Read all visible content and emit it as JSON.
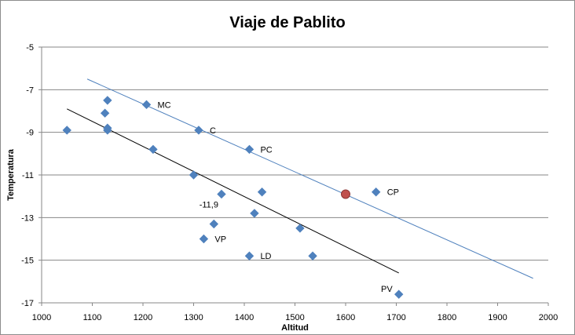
{
  "chart_data": {
    "type": "scatter",
    "title": "Viaje de Pablito",
    "xlabel": "Altitud",
    "ylabel": "Temperatura",
    "xlim": [
      1000,
      2000
    ],
    "ylim": [
      -17,
      -5
    ],
    "xticks": [
      1000,
      1100,
      1200,
      1300,
      1400,
      1500,
      1600,
      1700,
      1800,
      1900,
      2000
    ],
    "yticks": [
      -5,
      -7,
      -9,
      -11,
      -13,
      -15,
      -17
    ],
    "grid": "horizontal",
    "legend": "none",
    "points": [
      {
        "x": 1050,
        "y": -8.9
      },
      {
        "x": 1125,
        "y": -8.1
      },
      {
        "x": 1130,
        "y": -7.5
      },
      {
        "x": 1130,
        "y": -8.8
      },
      {
        "x": 1130,
        "y": -8.9
      },
      {
        "x": 1207,
        "y": -7.7,
        "label": "MC"
      },
      {
        "x": 1220,
        "y": -9.8
      },
      {
        "x": 1300,
        "y": -11.0
      },
      {
        "x": 1310,
        "y": -8.9,
        "label": "C"
      },
      {
        "x": 1320,
        "y": -14.0,
        "label": "VP"
      },
      {
        "x": 1340,
        "y": -13.3
      },
      {
        "x": 1355,
        "y": -11.9
      },
      {
        "x": 1410,
        "y": -9.8,
        "label": "PC"
      },
      {
        "x": 1410,
        "y": -14.8,
        "label": "LD"
      },
      {
        "x": 1420,
        "y": -12.8
      },
      {
        "x": 1435,
        "y": -11.8
      },
      {
        "x": 1510,
        "y": -13.5
      },
      {
        "x": 1535,
        "y": -14.8
      },
      {
        "x": 1660,
        "y": -11.8,
        "label": "CP"
      },
      {
        "x": 1705,
        "y": -16.6,
        "label": "PV"
      }
    ],
    "highlight": {
      "x": 1600,
      "y": -11.9,
      "color": "#c0504d"
    },
    "annotations": [
      {
        "text": "-11,9",
        "x": 1355,
        "y": -11.9
      }
    ],
    "trendlines": [
      {
        "color": "#000000",
        "x": [
          1050,
          1705
        ],
        "y": [
          -7.9,
          -15.6
        ]
      },
      {
        "color": "#4f81bd",
        "x": [
          1090,
          1970
        ],
        "y": [
          -6.5,
          -15.85
        ]
      }
    ],
    "colors": {
      "marker": "#4f81bd",
      "highlight": "#c0504d",
      "grid": "#878787",
      "axis": "#878787"
    }
  }
}
